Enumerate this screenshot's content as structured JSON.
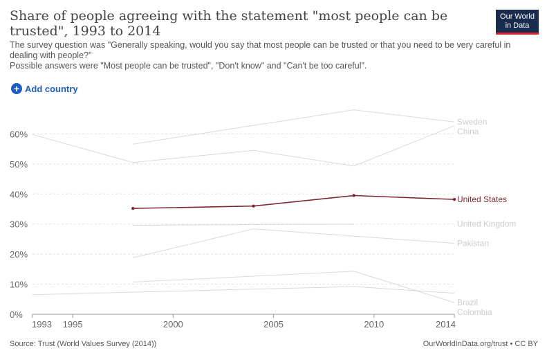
{
  "header": {
    "title": "Share of people agreeing with the statement \"most people can be trusted\", 1993 to 2014",
    "subtitle_lines": [
      "The survey question was \"Generally speaking, would you say that most people can be trusted or that you need to be very careful in dealing with people?\"",
      "Possible answers were \"Most people can be trusted\", \"Don't know\" and \"Can't be too careful\"."
    ]
  },
  "logo": {
    "line1": "Our World",
    "line2": "in Data"
  },
  "controls": {
    "add_country_label": "Add country",
    "add_icon": "plus-circle-icon"
  },
  "footer": {
    "source": "Source: Trust (World Values Survey (2014))",
    "credit": "OurWorldInData.org/trust • CC BY"
  },
  "colors": {
    "highlight": "#7d2a2f",
    "muted_line": "#d9d9d9",
    "muted_label": "#cccccc",
    "grid": "#dddddd",
    "brand_navy": "#1a2c4e",
    "brand_red": "#d7262e",
    "link_blue": "#1d5fbf"
  },
  "chart_data": {
    "type": "line",
    "xlim": [
      1993,
      2014
    ],
    "ylim": [
      0,
      70
    ],
    "x_ticks": [
      1993,
      1995,
      2000,
      2005,
      2010,
      2014
    ],
    "y_ticks": [
      {
        "value": 0,
        "label": "0%"
      },
      {
        "value": 10,
        "label": "10%"
      },
      {
        "value": 20,
        "label": "20%"
      },
      {
        "value": 30,
        "label": "30%"
      },
      {
        "value": 40,
        "label": "40%"
      },
      {
        "value": 50,
        "label": "50%"
      },
      {
        "value": 60,
        "label": "60%"
      }
    ],
    "grid": "horizontal-dashed",
    "series": [
      {
        "name": "Sweden",
        "highlight": false,
        "points": [
          [
            1998,
            56.6
          ],
          [
            2009,
            68.0
          ],
          [
            2014,
            64.0
          ]
        ]
      },
      {
        "name": "China",
        "highlight": false,
        "points": [
          [
            1993,
            59.8
          ],
          [
            1998,
            50.5
          ],
          [
            2004,
            54.5
          ],
          [
            2009,
            49.3
          ],
          [
            2014,
            62.7
          ]
        ]
      },
      {
        "name": "United States",
        "highlight": true,
        "points": [
          [
            1998,
            35.2
          ],
          [
            2004,
            36.0
          ],
          [
            2009,
            39.5
          ],
          [
            2014,
            38.2
          ]
        ]
      },
      {
        "name": "United Kingdom",
        "highlight": false,
        "points": [
          [
            1998,
            29.6
          ],
          [
            2009,
            30.0
          ]
        ]
      },
      {
        "name": "Pakistan",
        "highlight": false,
        "points": [
          [
            1998,
            18.8
          ],
          [
            2004,
            28.4
          ],
          [
            2014,
            23.6
          ]
        ]
      },
      {
        "name": "Brazil",
        "highlight": false,
        "points": [
          [
            1998,
            10.7
          ],
          [
            2009,
            14.3
          ],
          [
            2014,
            3.9
          ]
        ]
      },
      {
        "name": "Colombia",
        "highlight": false,
        "points": [
          [
            1993,
            6.5
          ],
          [
            2009,
            9.2
          ],
          [
            2014,
            7.0
          ]
        ]
      }
    ],
    "label_order": [
      "Sweden",
      "China",
      "United States",
      "United Kingdom",
      "Pakistan",
      "Brazil",
      "Colombia"
    ]
  }
}
